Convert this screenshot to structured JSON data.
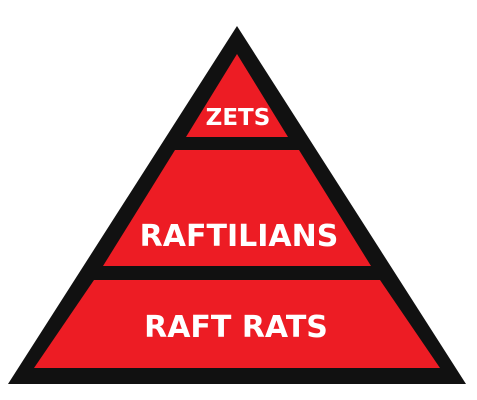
{
  "pyramid": {
    "fill_color": "#ed1c24",
    "outline_color": "#111111",
    "background_color": "#ffffff",
    "tiers": [
      {
        "label": "ZETS"
      },
      {
        "label": "RAFTILIANS"
      },
      {
        "label": "RAFT RATS"
      }
    ]
  }
}
